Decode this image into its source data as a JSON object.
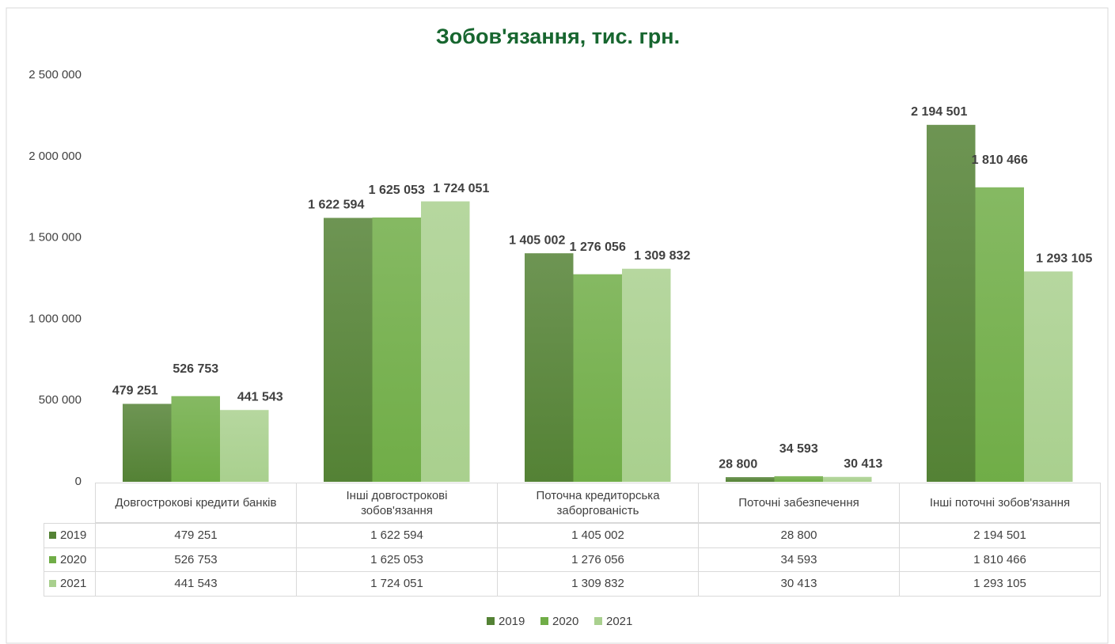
{
  "chart_data": {
    "type": "bar",
    "title": "Зобов'язання, тис. грн.",
    "categories": [
      "Довгострокові кредити банків",
      "Інші довгострокові зобов'язання",
      "Поточна кредиторська заборгованість",
      "Поточні забезпечення",
      "Інші поточні зобов'язання"
    ],
    "series": [
      {
        "name": "2019",
        "color": "#548235",
        "values": [
          479251,
          1622594,
          1405002,
          28800,
          2194501
        ],
        "value_labels": [
          "479 251",
          "1 622 594",
          "1 405 002",
          "28 800",
          "2 194 501"
        ]
      },
      {
        "name": "2020",
        "color": "#70ad47",
        "values": [
          526753,
          1625053,
          1276056,
          34593,
          1810466
        ],
        "value_labels": [
          "526 753",
          "1 625 053",
          "1 276 056",
          "34 593",
          "1 810 466"
        ]
      },
      {
        "name": "2021",
        "color": "#a9d08e",
        "values": [
          441543,
          1724051,
          1309832,
          30413,
          1293105
        ],
        "value_labels": [
          "441 543",
          "1 724 051",
          "1 309 832",
          "30 413",
          "1 293 105"
        ]
      }
    ],
    "ylim": [
      0,
      2500000
    ],
    "yticks": [
      0,
      {
        "value": 500000,
        "label": "500 000"
      },
      {
        "value": 1000000,
        "label": "1 000 000"
      },
      {
        "value": 1500000,
        "label": "1 500 000"
      },
      {
        "value": 2000000,
        "label": "2 000 000"
      },
      {
        "value": 2500000,
        "label": "2 500 000"
      }
    ],
    "legend": "bottom",
    "data_table": true
  }
}
